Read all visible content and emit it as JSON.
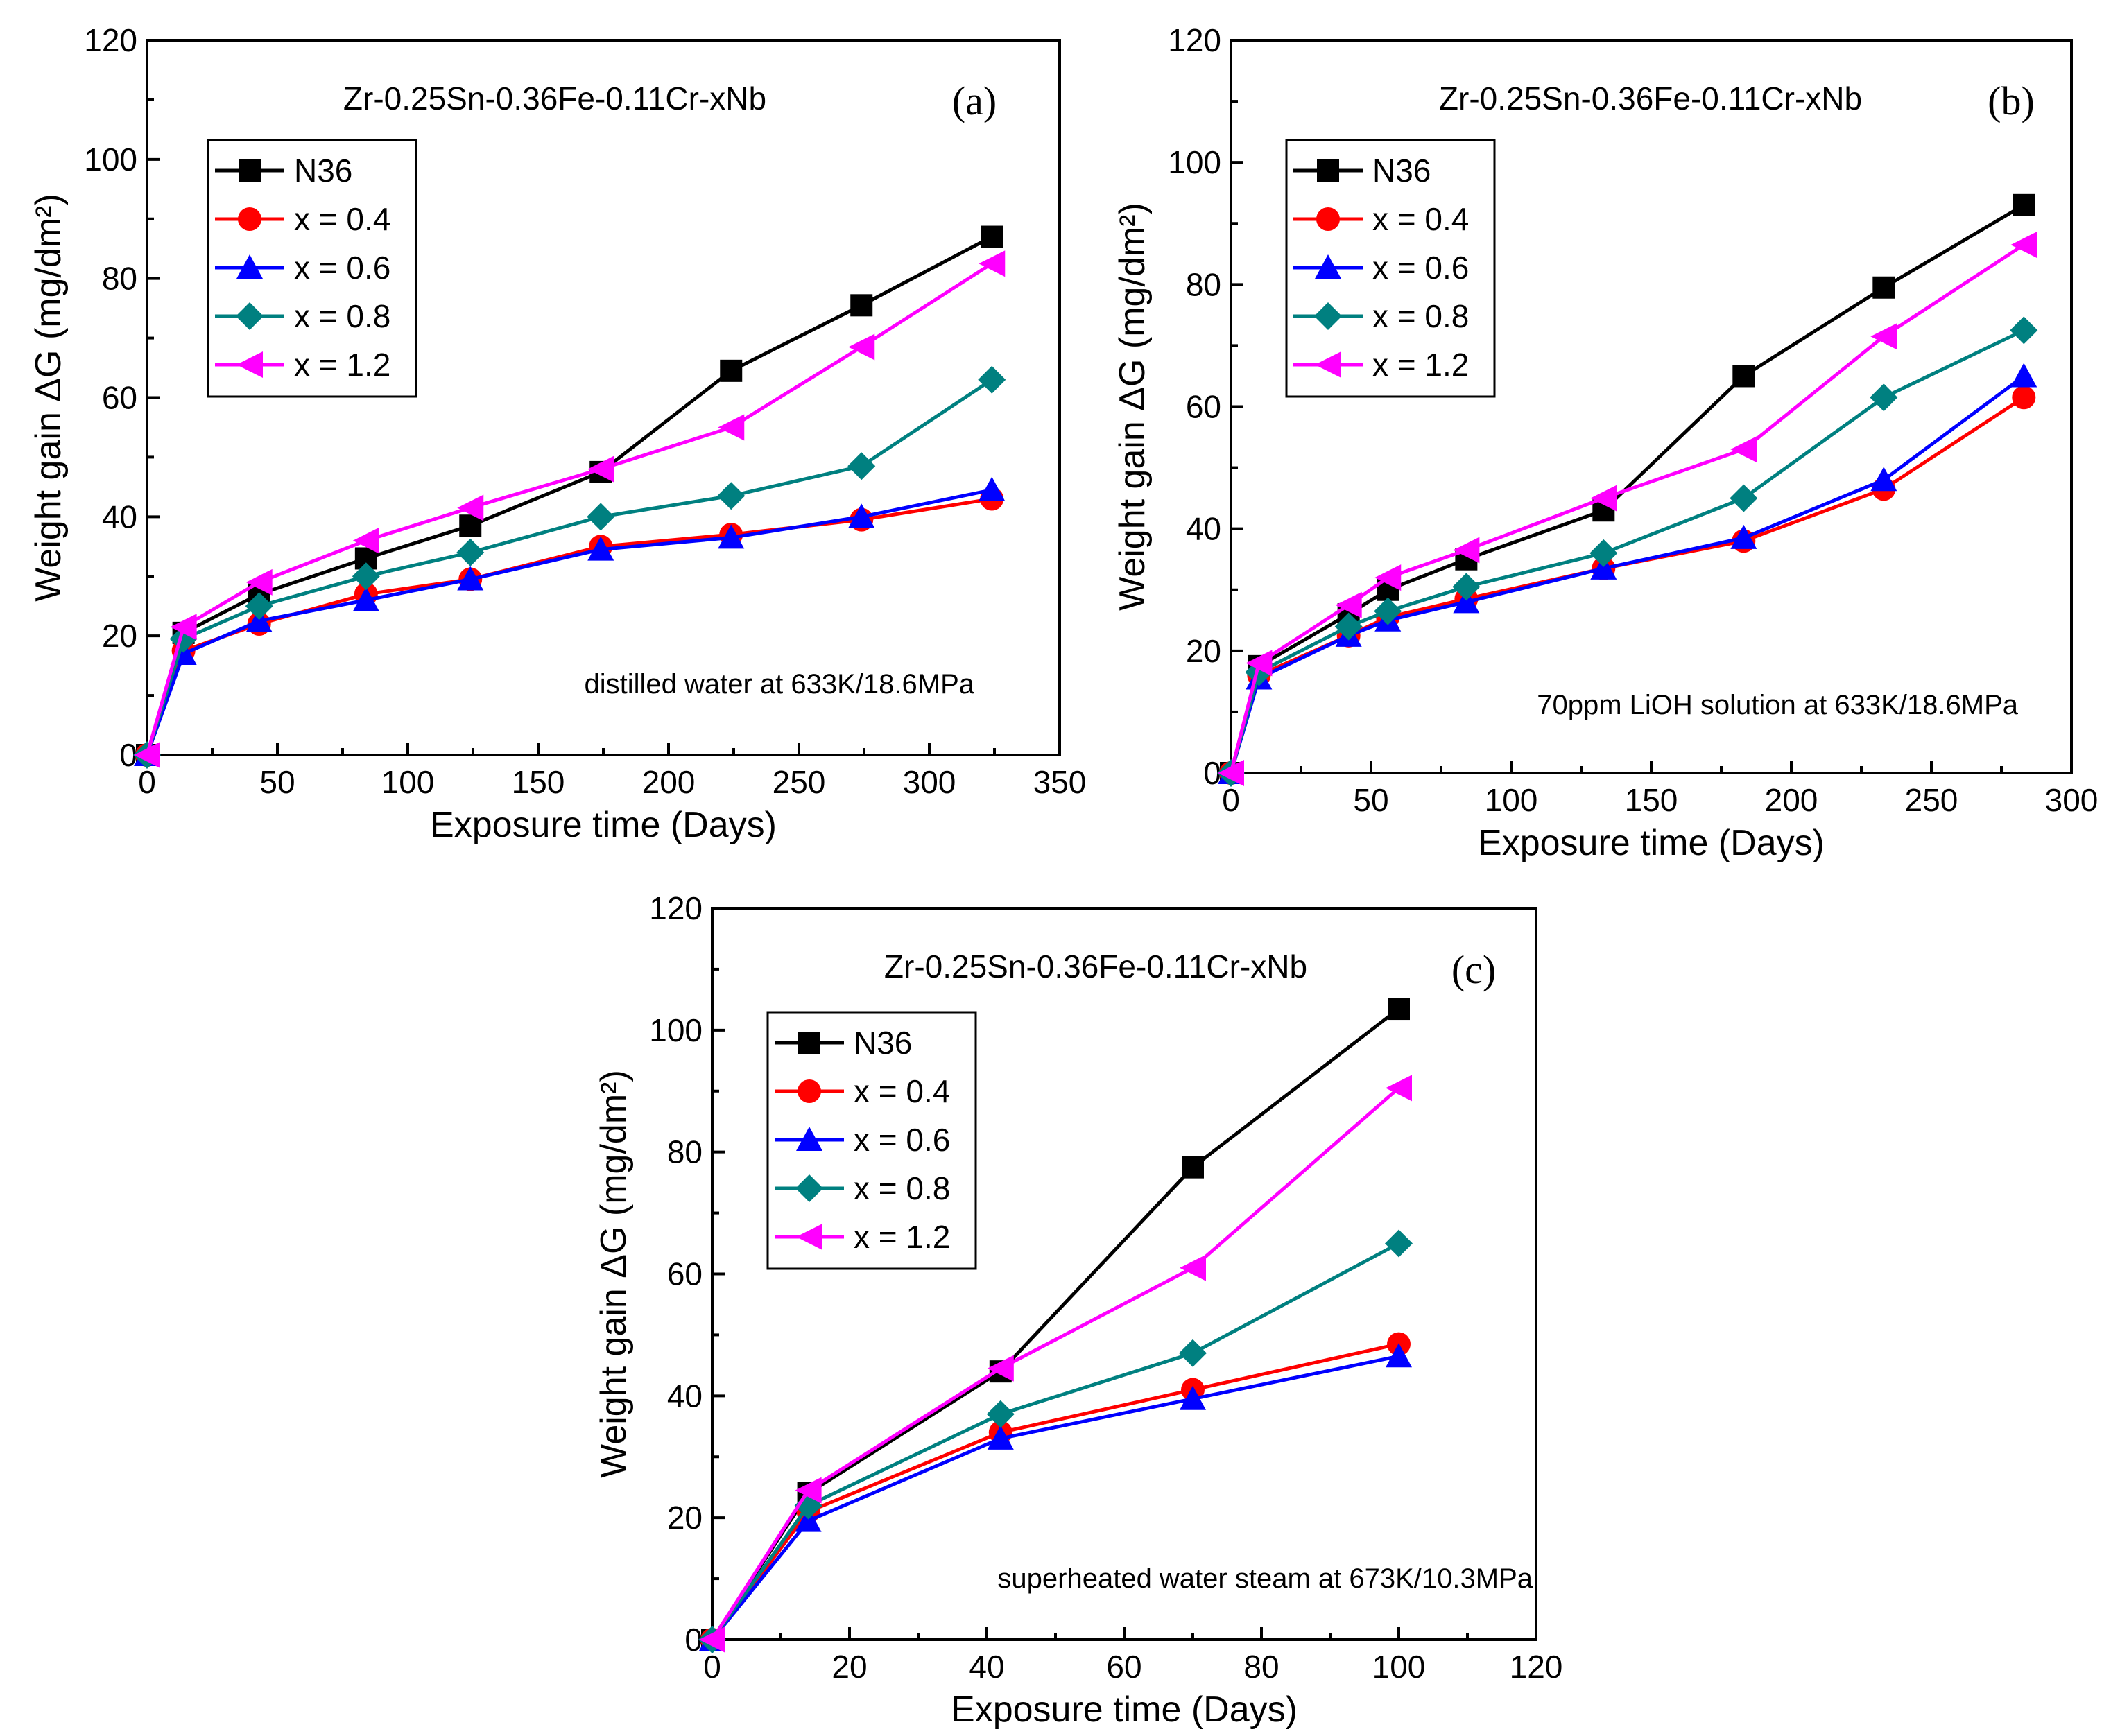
{
  "chart_data": [
    {
      "type": "line",
      "panel_label": "(a)",
      "title": "Zr-0.25Sn-0.36Fe-0.11Cr-xNb",
      "condition": "distilled water at 633K/18.6MPa",
      "xlabel": "Exposure time (Days)",
      "ylabel": "Weight gain ΔG (mg/dm²)",
      "xlim": [
        0,
        350
      ],
      "ylim": [
        0,
        120
      ],
      "xticks": [
        0,
        50,
        100,
        150,
        200,
        250,
        300,
        350
      ],
      "yticks": [
        0,
        20,
        40,
        60,
        80,
        100,
        120
      ],
      "legend_position": "top-left",
      "series": [
        {
          "name": "N36",
          "color": "#000000",
          "marker": "square",
          "x": [
            0,
            14,
            43,
            84,
            124,
            174,
            224,
            274,
            324
          ],
          "y": [
            0,
            20.5,
            27,
            33,
            38.5,
            47.5,
            64.5,
            75.5,
            87
          ]
        },
        {
          "name": "x = 0.4",
          "color": "#ff0000",
          "marker": "circle",
          "x": [
            0,
            14,
            43,
            84,
            124,
            174,
            224,
            274,
            324
          ],
          "y": [
            0,
            17.5,
            22,
            27,
            29.5,
            35,
            37,
            39.5,
            43
          ]
        },
        {
          "name": "x = 0.6",
          "color": "#0000ff",
          "marker": "triangle-up",
          "x": [
            0,
            14,
            43,
            84,
            124,
            174,
            224,
            274,
            324
          ],
          "y": [
            0,
            17,
            22.5,
            26,
            29.5,
            34.5,
            36.5,
            40,
            44.5
          ]
        },
        {
          "name": "x = 0.8",
          "color": "#008080",
          "marker": "diamond",
          "x": [
            0,
            14,
            43,
            84,
            124,
            174,
            224,
            274,
            324
          ],
          "y": [
            0,
            19.5,
            25,
            30,
            34,
            40,
            43.5,
            48.5,
            63
          ]
        },
        {
          "name": "x = 1.2",
          "color": "#ff00ff",
          "marker": "triangle-left",
          "x": [
            0,
            14,
            43,
            84,
            124,
            174,
            224,
            274,
            324
          ],
          "y": [
            0,
            21.5,
            29,
            36,
            41.5,
            48,
            55,
            68.5,
            82.5
          ]
        }
      ]
    },
    {
      "type": "line",
      "panel_label": "(b)",
      "title": "Zr-0.25Sn-0.36Fe-0.11Cr-xNb",
      "condition": "70ppm LiOH solution at 633K/18.6MPa",
      "xlabel": "Exposure time (Days)",
      "ylabel": "Weight gain ΔG (mg/dm²)",
      "xlim": [
        0,
        300
      ],
      "ylim": [
        0,
        120
      ],
      "xticks": [
        0,
        50,
        100,
        150,
        200,
        250,
        300
      ],
      "yticks": [
        0,
        20,
        40,
        60,
        80,
        100,
        120
      ],
      "legend_position": "top-left",
      "series": [
        {
          "name": "N36",
          "color": "#000000",
          "marker": "square",
          "x": [
            0,
            10,
            42,
            56,
            84,
            133,
            183,
            233,
            283
          ],
          "y": [
            0,
            17.5,
            26,
            30,
            35,
            43,
            65,
            79.5,
            93
          ]
        },
        {
          "name": "x = 0.4",
          "color": "#ff0000",
          "marker": "circle",
          "x": [
            0,
            10,
            42,
            56,
            84,
            133,
            183,
            233,
            283
          ],
          "y": [
            0,
            16,
            22.5,
            25.5,
            28.5,
            33.5,
            38,
            46.5,
            61.5
          ]
        },
        {
          "name": "x = 0.6",
          "color": "#0000ff",
          "marker": "triangle-up",
          "x": [
            0,
            10,
            42,
            56,
            84,
            133,
            183,
            233,
            283
          ],
          "y": [
            0,
            15.5,
            22.5,
            25,
            28,
            33.5,
            38.5,
            48,
            65
          ]
        },
        {
          "name": "x = 0.8",
          "color": "#008080",
          "marker": "diamond",
          "x": [
            0,
            10,
            42,
            56,
            84,
            133,
            183,
            233,
            283
          ],
          "y": [
            0,
            16.5,
            24,
            26.5,
            30.5,
            36,
            45,
            61.5,
            72.5
          ]
        },
        {
          "name": "x = 1.2",
          "color": "#ff00ff",
          "marker": "triangle-left",
          "x": [
            0,
            10,
            42,
            56,
            84,
            133,
            183,
            233,
            283
          ],
          "y": [
            0,
            18,
            27.5,
            32,
            36.5,
            45,
            53,
            71.5,
            86.5
          ]
        }
      ]
    },
    {
      "type": "line",
      "panel_label": "(c)",
      "title": "Zr-0.25Sn-0.36Fe-0.11Cr-xNb",
      "condition": "superheated water steam at 673K/10.3MPa",
      "xlabel": "Exposure time (Days)",
      "ylabel": "Weight gain ΔG (mg/dm²)",
      "xlim": [
        0,
        120
      ],
      "ylim": [
        0,
        120
      ],
      "xticks": [
        0,
        20,
        40,
        60,
        80,
        100,
        120
      ],
      "yticks": [
        0,
        20,
        40,
        60,
        80,
        100,
        120
      ],
      "legend_position": "top-left",
      "series": [
        {
          "name": "N36",
          "color": "#000000",
          "marker": "square",
          "x": [
            0,
            14,
            42,
            70,
            100
          ],
          "y": [
            0,
            24,
            44,
            77.5,
            103.5
          ]
        },
        {
          "name": "x = 0.4",
          "color": "#ff0000",
          "marker": "circle",
          "x": [
            0,
            14,
            42,
            70,
            100
          ],
          "y": [
            0,
            21,
            34,
            41,
            48.5
          ]
        },
        {
          "name": "x = 0.6",
          "color": "#0000ff",
          "marker": "triangle-up",
          "x": [
            0,
            14,
            42,
            70,
            100
          ],
          "y": [
            0,
            19.5,
            33,
            39.5,
            46.5
          ]
        },
        {
          "name": "x = 0.8",
          "color": "#008080",
          "marker": "diamond",
          "x": [
            0,
            14,
            42,
            70,
            100
          ],
          "y": [
            0,
            22,
            37,
            47,
            65
          ]
        },
        {
          "name": "x = 1.2",
          "color": "#ff00ff",
          "marker": "triangle-left",
          "x": [
            0,
            14,
            42,
            70,
            100
          ],
          "y": [
            0,
            24.5,
            44.5,
            61,
            90.5
          ]
        }
      ]
    }
  ]
}
